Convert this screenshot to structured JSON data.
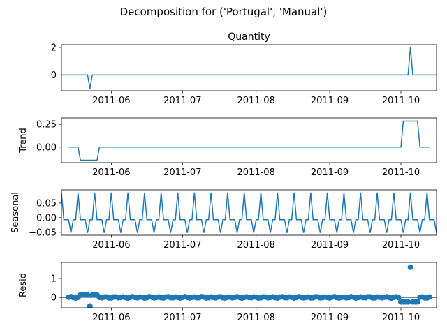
{
  "figure": {
    "suptitle": "Decomposition for ('Portugal', 'Manual')"
  },
  "chart_data": [
    {
      "type": "line",
      "panel": "observed",
      "title": "Quantity",
      "ylabel": "",
      "xlim": [
        "2011-05-11",
        "2011-10-16"
      ],
      "ylim": [
        -1.15,
        2.2
      ],
      "yticks": [
        0,
        2
      ],
      "xticks": [
        "2011-06",
        "2011-07",
        "2011-08",
        "2011-09",
        "2011-10"
      ],
      "color": "#1f77b4",
      "series": [
        {
          "x": [
            "2011-05-11",
            "2011-05-22",
            "2011-05-23",
            "2011-05-24",
            "2011-10-04",
            "2011-10-05",
            "2011-10-06",
            "2011-10-16"
          ],
          "y": [
            0,
            0,
            -1,
            0,
            0,
            2,
            0,
            0
          ]
        }
      ]
    },
    {
      "type": "line",
      "panel": "trend",
      "title": "",
      "ylabel": "Trend",
      "xlim": [
        "2011-05-11",
        "2011-10-16"
      ],
      "ylim": [
        -0.17,
        0.32
      ],
      "yticks": [
        0.0,
        0.25
      ],
      "ytick_labels": [
        "0.00",
        "0.25"
      ],
      "xticks": [
        "2011-06",
        "2011-07",
        "2011-08",
        "2011-09",
        "2011-10"
      ],
      "color": "#1f77b4",
      "series": [
        {
          "x": [
            "2011-05-14",
            "2011-05-18",
            "2011-05-19",
            "2011-05-26",
            "2011-05-27",
            "2011-10-01",
            "2011-10-02",
            "2011-10-08",
            "2011-10-09",
            "2011-10-13"
          ],
          "y": [
            0,
            0,
            -0.143,
            -0.143,
            0,
            0,
            0.286,
            0.286,
            0,
            0
          ]
        }
      ]
    },
    {
      "type": "line",
      "panel": "seasonal",
      "title": "",
      "ylabel": "Seasonal",
      "xlim": [
        "2011-05-11",
        "2011-10-16"
      ],
      "ylim": [
        -0.06,
        0.095
      ],
      "yticks": [
        -0.05,
        0.0,
        0.05
      ],
      "ytick_labels": [
        "−0.05",
        "0.00",
        "0.05"
      ],
      "xticks": [
        "2011-06",
        "2011-07",
        "2011-08",
        "2011-09",
        "2011-10"
      ],
      "color": "#1f77b4",
      "period": 7,
      "start": "2011-05-11",
      "end": "2011-10-16",
      "pattern": [
        0.086,
        -0.007,
        -0.007,
        -0.007,
        -0.052,
        -0.007,
        -0.007
      ]
    },
    {
      "type": "scatter",
      "panel": "resid",
      "title": "",
      "ylabel": "Resid",
      "xlim": [
        "2011-05-11",
        "2011-10-16"
      ],
      "ylim": [
        -0.55,
        1.85
      ],
      "yticks": [
        0,
        1
      ],
      "xticks": [
        "2011-06",
        "2011-07",
        "2011-08",
        "2011-09",
        "2011-10"
      ],
      "color": "#1f77b4",
      "start": "2011-05-14",
      "end": "2011-10-13",
      "baseline": 0,
      "outliers": [
        {
          "x": "2011-05-23",
          "y": -0.46
        },
        {
          "x": "2011-10-05",
          "y": 1.6
        }
      ]
    }
  ]
}
